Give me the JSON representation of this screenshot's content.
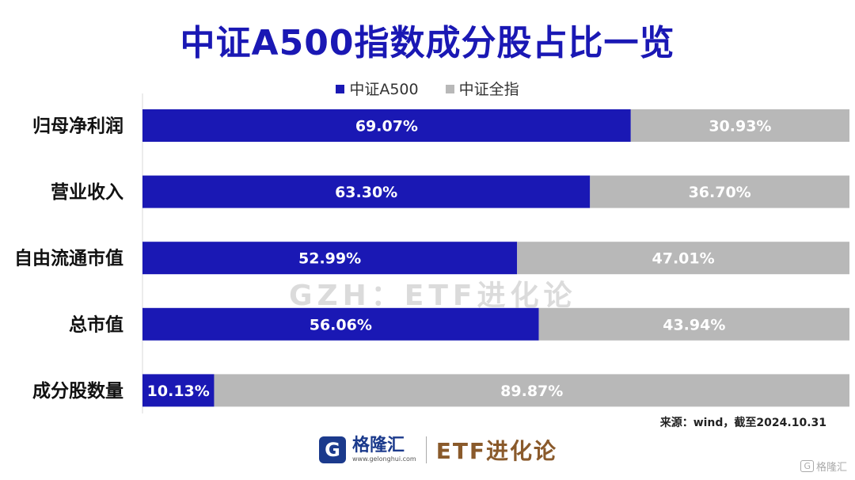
{
  "title": "中证A500指数成分股占比一览",
  "legend": [
    {
      "label": "中证A500",
      "color": "#1a18b4"
    },
    {
      "label": "中证全指",
      "color": "#b8b8b8"
    }
  ],
  "watermark": "GZH：ETF进化论",
  "source": "来源：wind，截至2024.10.31",
  "footer": {
    "logo_glyph": "G",
    "logo_name": "格隆汇",
    "logo_url": "www.gelonghui.com",
    "brand": "ETF进化论"
  },
  "corner_mark": {
    "glyph": "G",
    "text": "格隆汇"
  },
  "chart_data": {
    "type": "bar",
    "orientation": "horizontal",
    "stacked": true,
    "percent_stacked": true,
    "title": "中证A500指数成分股占比一览",
    "xlabel": "",
    "ylabel": "",
    "xlim": [
      0,
      100
    ],
    "grid": false,
    "legend_position": "top",
    "categories": [
      "归母净利润",
      "营业收入",
      "自由流通市值",
      "总市值",
      "成分股数量"
    ],
    "series": [
      {
        "name": "中证A500",
        "color": "#1a18b4",
        "values": [
          69.07,
          63.3,
          52.99,
          56.06,
          10.13
        ],
        "labels": [
          "69.07%",
          "63.30%",
          "52.99%",
          "56.06%",
          "10.13%"
        ]
      },
      {
        "name": "中证全指",
        "color": "#b8b8b8",
        "values": [
          30.93,
          36.7,
          47.01,
          43.94,
          89.87
        ],
        "labels": [
          "30.93%",
          "36.70%",
          "47.01%",
          "43.94%",
          "89.87%"
        ]
      }
    ]
  }
}
